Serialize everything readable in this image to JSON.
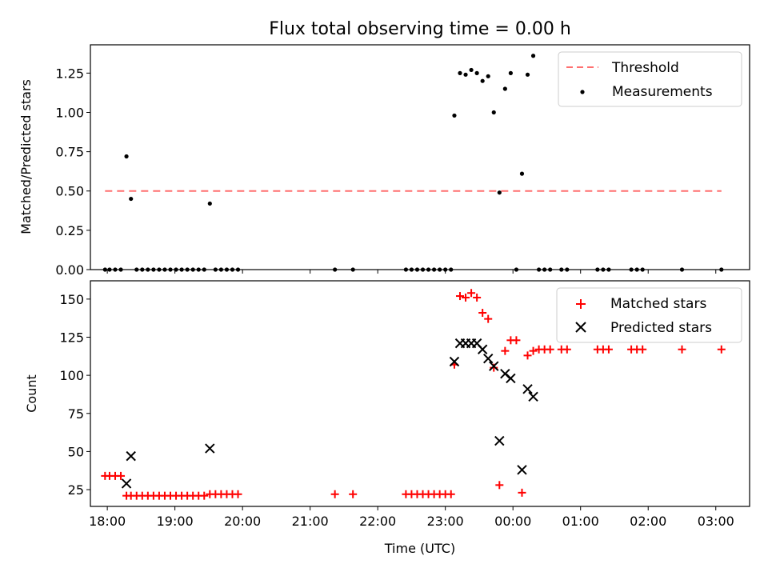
{
  "figure": {
    "title": "Flux total observing time = 0.00 h",
    "xlabel": "Time (UTC)",
    "x_ticks": [
      "18:00",
      "19:00",
      "20:00",
      "21:00",
      "22:00",
      "23:00",
      "00:00",
      "01:00",
      "02:00",
      "03:00"
    ]
  },
  "chart_data": [
    {
      "type": "scatter",
      "ylabel": "Matched/Predicted stars",
      "xlim": [
        "17:45",
        "03:30"
      ],
      "ylim": [
        0,
        1.43
      ],
      "y_ticks": [
        0.0,
        0.25,
        0.5,
        0.75,
        1.0,
        1.25
      ],
      "legend_position": "top-right",
      "series": [
        {
          "name": "Threshold",
          "kind": "dashed-line",
          "color": "#ff7070",
          "x": [
            "17:58",
            "03:05"
          ],
          "y": [
            0.5,
            0.5
          ]
        },
        {
          "name": "Measurements",
          "kind": "dot",
          "color": "#000000",
          "x": [
            "17:58",
            "18:02",
            "18:07",
            "18:12",
            "18:17",
            "18:21",
            "18:26",
            "18:31",
            "18:36",
            "18:41",
            "18:46",
            "18:51",
            "18:56",
            "19:01",
            "19:06",
            "19:11",
            "19:16",
            "19:21",
            "19:26",
            "19:31",
            "19:36",
            "19:41",
            "19:46",
            "19:51",
            "19:56",
            "21:22",
            "21:38",
            "22:25",
            "22:30",
            "22:35",
            "22:40",
            "22:45",
            "22:50",
            "22:55",
            "23:00",
            "23:05",
            "23:08",
            "23:13",
            "23:18",
            "23:23",
            "23:28",
            "23:33",
            "23:38",
            "23:43",
            "23:48",
            "23:53",
            "23:58",
            "00:03",
            "00:08",
            "00:13",
            "00:18",
            "00:23",
            "00:28",
            "00:33",
            "00:43",
            "00:48",
            "01:15",
            "01:20",
            "01:25",
            "01:45",
            "01:50",
            "01:55",
            "02:30",
            "03:05"
          ],
          "y": [
            0,
            0,
            0,
            0,
            0.72,
            0.45,
            0,
            0,
            0,
            0,
            0,
            0,
            0,
            0,
            0,
            0,
            0,
            0,
            0,
            0.42,
            0,
            0,
            0,
            0,
            0,
            0,
            0,
            0,
            0,
            0,
            0,
            0,
            0,
            0,
            0,
            0,
            0.98,
            1.25,
            1.24,
            1.27,
            1.25,
            1.2,
            1.23,
            1.0,
            0.49,
            1.15,
            1.25,
            0,
            0.61,
            1.24,
            1.36,
            0,
            0,
            0,
            0,
            0,
            0,
            0,
            0,
            0,
            0,
            0,
            0,
            0
          ]
        }
      ]
    },
    {
      "type": "scatter",
      "ylabel": "Count",
      "xlim": [
        "17:45",
        "03:30"
      ],
      "ylim": [
        14,
        162
      ],
      "y_ticks": [
        25,
        50,
        75,
        100,
        125,
        150
      ],
      "legend_position": "top-right",
      "series": [
        {
          "name": "Matched stars",
          "kind": "plus",
          "color": "#ff0000",
          "x": [
            "17:58",
            "18:02",
            "18:07",
            "18:12",
            "18:17",
            "18:21",
            "18:26",
            "18:31",
            "18:36",
            "18:41",
            "18:46",
            "18:51",
            "18:56",
            "19:01",
            "19:06",
            "19:11",
            "19:16",
            "19:21",
            "19:26",
            "19:31",
            "19:36",
            "19:41",
            "19:46",
            "19:51",
            "19:56",
            "21:22",
            "21:38",
            "22:25",
            "22:30",
            "22:35",
            "22:40",
            "22:45",
            "22:50",
            "22:55",
            "23:00",
            "23:05",
            "23:08",
            "23:13",
            "23:18",
            "23:23",
            "23:28",
            "23:33",
            "23:38",
            "23:43",
            "23:48",
            "23:53",
            "23:58",
            "00:03",
            "00:08",
            "00:13",
            "00:18",
            "00:23",
            "00:28",
            "00:33",
            "00:43",
            "00:48",
            "01:15",
            "01:20",
            "01:25",
            "01:45",
            "01:50",
            "01:55",
            "02:30",
            "03:05"
          ],
          "y": [
            34,
            34,
            34,
            34,
            21,
            21,
            21,
            21,
            21,
            21,
            21,
            21,
            21,
            21,
            21,
            21,
            21,
            21,
            21,
            22,
            22,
            22,
            22,
            22,
            22,
            22,
            22,
            22,
            22,
            22,
            22,
            22,
            22,
            22,
            22,
            22,
            107,
            152,
            151,
            154,
            151,
            141,
            137,
            105,
            28,
            116,
            123,
            123,
            23,
            113,
            116,
            117,
            117,
            117,
            117,
            117,
            117,
            117,
            117,
            117,
            117,
            117,
            117,
            117
          ]
        },
        {
          "name": "Predicted stars",
          "kind": "x",
          "color": "#000000",
          "x": [
            "18:17",
            "18:21",
            "19:31",
            "23:08",
            "23:13",
            "23:18",
            "23:23",
            "23:28",
            "23:33",
            "23:38",
            "23:43",
            "23:48",
            "23:53",
            "23:58",
            "00:08",
            "00:13",
            "00:18"
          ],
          "y": [
            29,
            47,
            52,
            109,
            121,
            121,
            121,
            121,
            117,
            111,
            106,
            57,
            101,
            98,
            38,
            91,
            86
          ]
        }
      ]
    }
  ]
}
